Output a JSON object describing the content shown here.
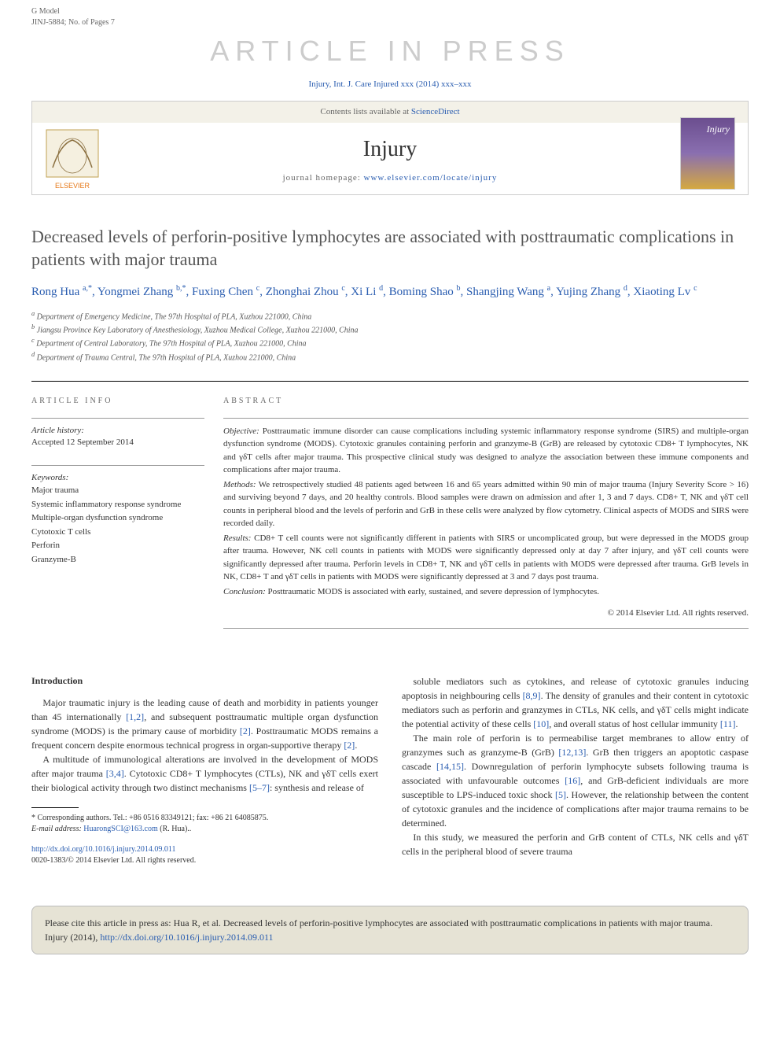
{
  "header": {
    "model_line": "G Model",
    "article_id": "JINJ-5884; No. of Pages 7",
    "watermark": "ARTICLE IN PRESS",
    "journal_ref": "Injury, Int. J. Care Injured xxx (2014) xxx–xxx",
    "contents_text": "Contents lists available at ",
    "contents_link": "ScienceDirect",
    "journal_name": "Injury",
    "homepage_label": "journal homepage: ",
    "homepage_url": "www.elsevier.com/locate/injury",
    "cover_label": "Injury"
  },
  "article": {
    "title": "Decreased levels of perforin-positive lymphocytes are associated with posttraumatic complications in patients with major trauma",
    "authors_html": "Rong Hua <sup>a,*</sup>, Yongmei Zhang <sup>b,*</sup>, Fuxing Chen <sup>c</sup>, Zhonghai Zhou <sup>c</sup>, Xi Li <sup>d</sup>, Boming Shao <sup>b</sup>, Shangjing Wang <sup>a</sup>, Yujing Zhang <sup>d</sup>, Xiaoting Lv <sup>c</sup>",
    "affiliations": [
      "a Department of Emergency Medicine, The 97th Hospital of PLA, Xuzhou 221000, China",
      "b Jiangsu Province Key Laboratory of Anesthesiology, Xuzhou Medical College, Xuzhou 221000, China",
      "c Department of Central Laboratory, The 97th Hospital of PLA, Xuzhou 221000, China",
      "d Department of Trauma Central, The 97th Hospital of PLA, Xuzhou 221000, China"
    ]
  },
  "info": {
    "section_label": "ARTICLE INFO",
    "history_label": "Article history:",
    "history_text": "Accepted 12 September 2014",
    "keywords_label": "Keywords:",
    "keywords": [
      "Major trauma",
      "Systemic inflammatory response syndrome",
      "Multiple-organ dysfunction syndrome",
      "Cytotoxic T cells",
      "Perforin",
      "Granzyme-B"
    ]
  },
  "abstract": {
    "section_label": "ABSTRACT",
    "objective_label": "Objective:",
    "objective": "Posttraumatic immune disorder can cause complications including systemic inflammatory response syndrome (SIRS) and multiple-organ dysfunction syndrome (MODS). Cytotoxic granules containing perforin and granzyme-B (GrB) are released by cytotoxic CD8+ T lymphocytes, NK and γδT cells after major trauma. This prospective clinical study was designed to analyze the association between these immune components and complications after major trauma.",
    "methods_label": "Methods:",
    "methods": "We retrospectively studied 48 patients aged between 16 and 65 years admitted within 90 min of major trauma (Injury Severity Score > 16) and surviving beyond 7 days, and 20 healthy controls. Blood samples were drawn on admission and after 1, 3 and 7 days. CD8+ T, NK and γδT cell counts in peripheral blood and the levels of perforin and GrB in these cells were analyzed by flow cytometry. Clinical aspects of MODS and SIRS were recorded daily.",
    "results_label": "Results:",
    "results": "CD8+ T cell counts were not significantly different in patients with SIRS or uncomplicated group, but were depressed in the MODS group after trauma. However, NK cell counts in patients with MODS were significantly depressed only at day 7 after injury, and γδT cell counts were significantly depressed after trauma. Perforin levels in CD8+ T, NK and γδT cells in patients with MODS were depressed after trauma. GrB levels in NK, CD8+ T and γδT cells in patients with MODS were significantly depressed at 3 and 7 days post trauma.",
    "conclusion_label": "Conclusion:",
    "conclusion": "Posttraumatic MODS is associated with early, sustained, and severe depression of lymphocytes.",
    "copyright": "© 2014 Elsevier Ltd. All rights reserved."
  },
  "body": {
    "intro_heading": "Introduction",
    "left_paragraphs": [
      "Major traumatic injury is the leading cause of death and morbidity in patients younger than 45 internationally [1,2], and subsequent posttraumatic multiple organ dysfunction syndrome (MODS) is the primary cause of morbidity [2]. Posttraumatic MODS remains a frequent concern despite enormous technical progress in organ-supportive therapy [2].",
      "A multitude of immunological alterations are involved in the development of MODS after major trauma [3,4]. Cytotoxic CD8+ T lymphocytes (CTLs), NK and γδT cells exert their biological activity through two distinct mechanisms [5–7]: synthesis and release of"
    ],
    "right_paragraphs": [
      "soluble mediators such as cytokines, and release of cytotoxic granules inducing apoptosis in neighbouring cells [8,9]. The density of granules and their content in cytotoxic mediators such as perforin and granzymes in CTLs, NK cells, and γδT cells might indicate the potential activity of these cells [10], and overall status of host cellular immunity [11].",
      "The main role of perforin is to permeabilise target membranes to allow entry of granzymes such as granzyme-B (GrB) [12,13]. GrB then triggers an apoptotic caspase cascade [14,15]. Downregulation of perforin lymphocyte subsets following trauma is associated with unfavourable outcomes [16], and GrB-deficient individuals are more susceptible to LPS-induced toxic shock [5]. However, the relationship between the content of cytotoxic granules and the incidence of complications after major trauma remains to be determined.",
      "In this study, we measured the perforin and GrB content of CTLs, NK cells and γδT cells in the peripheral blood of severe trauma"
    ]
  },
  "footnote": {
    "corresponding": "* Corresponding authors. Tel.: +86 0516 83349121; fax: +86 21 64085875.",
    "email_label": "E-mail address:",
    "email": "HuarongSCI@163.com",
    "email_suffix": "(R. Hua).."
  },
  "footer": {
    "doi_url": "http://dx.doi.org/10.1016/j.injury.2014.09.011",
    "issn_line": "0020-1383/© 2014 Elsevier Ltd. All rights reserved."
  },
  "cite_box": {
    "text": "Please cite this article in press as: Hua R, et al. Decreased levels of perforin-positive lymphocytes are associated with posttraumatic complications in patients with major trauma. Injury (2014), ",
    "url": "http://dx.doi.org/10.1016/j.injury.2014.09.011"
  },
  "colors": {
    "link": "#2a5db0",
    "watermark": "#cccccc",
    "header_bg": "#f3f1e8",
    "cite_bg": "#e6e3d5"
  }
}
